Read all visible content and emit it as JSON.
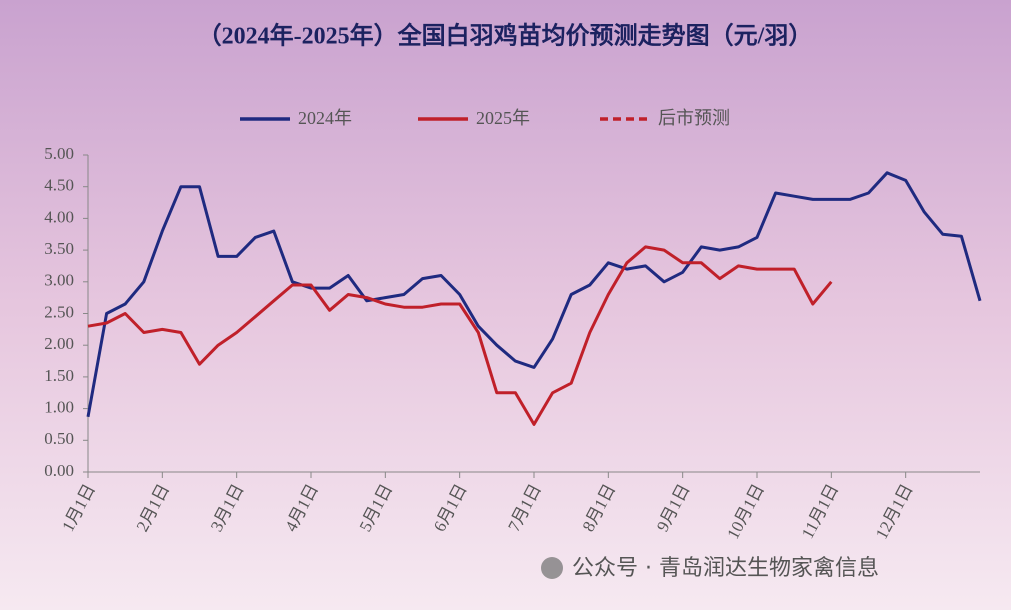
{
  "chart_data": {
    "type": "line",
    "title": "（2024年-2025年）全国白羽鸡苗均价预测走势图（元/羽）",
    "annotation": "公众号 · 青岛润达生物家禽信息",
    "x": [
      0,
      0.25,
      0.5,
      0.75,
      1,
      1.25,
      1.5,
      1.75,
      2,
      2.25,
      2.5,
      2.75,
      3,
      3.25,
      3.5,
      3.75,
      4,
      4.25,
      4.5,
      4.75,
      5,
      5.25,
      5.5,
      5.75,
      6,
      6.25,
      6.5,
      6.75,
      7,
      7.25,
      7.5,
      7.75,
      8,
      8.25,
      8.5,
      8.75,
      9,
      9.25,
      9.5,
      9.75,
      10,
      10.25,
      10.5,
      10.75,
      11,
      11.25,
      11.5,
      11.75,
      12
    ],
    "xlim": [
      0,
      12
    ],
    "xticks": [
      {
        "value": 0,
        "label": "1月1日"
      },
      {
        "value": 1,
        "label": "2月1日"
      },
      {
        "value": 2,
        "label": "3月1日"
      },
      {
        "value": 3,
        "label": "4月1日"
      },
      {
        "value": 4,
        "label": "5月1日"
      },
      {
        "value": 5,
        "label": "6月1日"
      },
      {
        "value": 6,
        "label": "7月1日"
      },
      {
        "value": 7,
        "label": "8月1日"
      },
      {
        "value": 8,
        "label": "9月1日"
      },
      {
        "value": 9,
        "label": "10月1日"
      },
      {
        "value": 10,
        "label": "11月1日"
      },
      {
        "value": 11,
        "label": "12月1日"
      }
    ],
    "ylim": [
      0,
      5
    ],
    "yticks": [
      {
        "value": 0,
        "label": "0.00"
      },
      {
        "value": 0.5,
        "label": "0.50"
      },
      {
        "value": 1,
        "label": "1.00"
      },
      {
        "value": 1.5,
        "label": "1.50"
      },
      {
        "value": 2,
        "label": "2.00"
      },
      {
        "value": 2.5,
        "label": "2.50"
      },
      {
        "value": 3,
        "label": "3.00"
      },
      {
        "value": 3.5,
        "label": "3.50"
      },
      {
        "value": 4,
        "label": "4.00"
      },
      {
        "value": 4.5,
        "label": "4.50"
      },
      {
        "value": 5,
        "label": "5.00"
      }
    ],
    "series": [
      {
        "name": "2024年",
        "color": "#1f2a80",
        "dashed": false,
        "values": [
          0.87,
          2.5,
          2.65,
          3.0,
          3.8,
          4.5,
          4.5,
          3.4,
          3.4,
          3.7,
          3.8,
          3.0,
          2.9,
          2.9,
          3.1,
          2.7,
          2.75,
          2.8,
          3.05,
          3.1,
          2.8,
          2.3,
          2.0,
          1.75,
          1.65,
          2.1,
          2.8,
          2.95,
          3.3,
          3.2,
          3.25,
          3.0,
          3.15,
          3.55,
          3.5,
          3.55,
          3.7,
          4.4,
          4.35,
          4.3,
          4.3,
          4.3,
          4.4,
          4.72,
          4.6,
          4.1,
          3.75,
          3.72,
          2.7
        ]
      },
      {
        "name": "2025年",
        "color": "#c0202a",
        "dashed": false,
        "values": [
          2.3,
          2.35,
          2.5,
          2.2,
          2.25,
          2.2,
          1.7,
          2.0,
          2.2,
          2.45,
          2.7,
          2.95,
          2.95,
          2.55,
          2.8,
          2.75,
          2.65,
          2.6,
          2.6,
          2.65,
          2.65,
          2.2,
          1.25,
          1.25,
          0.75,
          1.25,
          1.4,
          2.2,
          2.8,
          3.3,
          3.55,
          3.5,
          3.3,
          3.3,
          3.05,
          3.25,
          3.2,
          3.2,
          3.2,
          2.65,
          3.0,
          null,
          null,
          null,
          null,
          null,
          null,
          null,
          null
        ]
      },
      {
        "name": "后市预测",
        "color": "#c0202a",
        "dashed": true,
        "values": [
          null,
          null,
          null,
          null,
          null,
          null,
          null,
          null,
          null,
          null,
          null,
          null,
          null,
          null,
          null,
          null,
          null,
          null,
          null,
          null,
          null,
          null,
          null,
          null,
          null,
          null,
          null,
          null,
          null,
          null,
          null,
          null,
          null,
          null,
          null,
          null,
          null,
          null,
          null,
          null,
          null,
          null,
          null,
          null,
          null,
          null,
          null,
          null,
          null
        ]
      }
    ]
  }
}
